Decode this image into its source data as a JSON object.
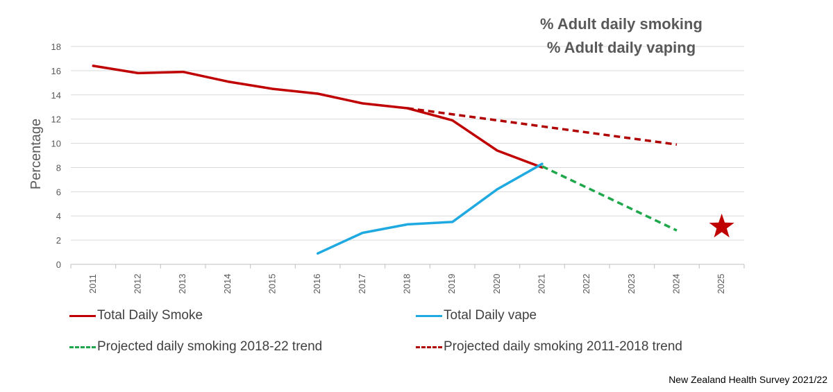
{
  "chart_data": {
    "type": "line",
    "title_lines": [
      "% Adult daily smoking",
      "% Adult daily  vaping"
    ],
    "xlabel": "",
    "ylabel": "Percentage",
    "categories": [
      "2011",
      "2012",
      "2013",
      "2014",
      "2015",
      "2016",
      "2017",
      "2018",
      "2019",
      "2020",
      "2021",
      "2022",
      "2023",
      "2024",
      "2025"
    ],
    "yticks": [
      0,
      2,
      4,
      6,
      8,
      10,
      12,
      14,
      16,
      18
    ],
    "ylim": [
      0,
      18
    ],
    "grid": true,
    "series": [
      {
        "name": "Total Daily Smoke",
        "color": "#C00000",
        "style": "solid",
        "points": [
          [
            "2011",
            16.4
          ],
          [
            "2012",
            15.8
          ],
          [
            "2013",
            15.9
          ],
          [
            "2014",
            15.1
          ],
          [
            "2015",
            14.5
          ],
          [
            "2016",
            14.1
          ],
          [
            "2017",
            13.3
          ],
          [
            "2018",
            12.9
          ],
          [
            "2019",
            11.9
          ],
          [
            "2020",
            9.4
          ],
          [
            "2021",
            8.0
          ]
        ]
      },
      {
        "name": "Total Daily vape",
        "color": "#1FA9E1",
        "style": "solid",
        "points": [
          [
            "2016",
            0.9
          ],
          [
            "2017",
            2.6
          ],
          [
            "2018",
            3.3
          ],
          [
            "2019",
            3.5
          ],
          [
            "2020",
            6.2
          ],
          [
            "2021",
            8.3
          ]
        ]
      },
      {
        "name": "Projected daily smoking 2018-22 trend",
        "color": "#1EA84B",
        "style": "dashed",
        "points": [
          [
            "2021",
            8.1
          ],
          [
            "2024",
            2.8
          ]
        ]
      },
      {
        "name": "Projected daily smoking 2011-2018 trend",
        "color": "#B00000",
        "style": "dashed",
        "points": [
          [
            "2018",
            12.9
          ],
          [
            "2024",
            9.9
          ]
        ]
      }
    ],
    "markers": [
      {
        "name": "target-star",
        "category": "2025",
        "value": 3.1,
        "color": "#C00000",
        "shape": "star"
      }
    ],
    "legend": [
      {
        "label": "Total Daily Smoke",
        "color": "#C00000",
        "style": "solid"
      },
      {
        "label": "Total Daily vape",
        "color": "#1FA9E1",
        "style": "solid"
      },
      {
        "label": "Projected daily smoking 2018-22 trend",
        "color": "#1EA84B",
        "style": "dashed"
      },
      {
        "label": "Projected daily smoking 2011-2018 trend",
        "color": "#B00000",
        "style": "dashed"
      }
    ],
    "source": "New Zealand Health Survey 2021/22"
  }
}
